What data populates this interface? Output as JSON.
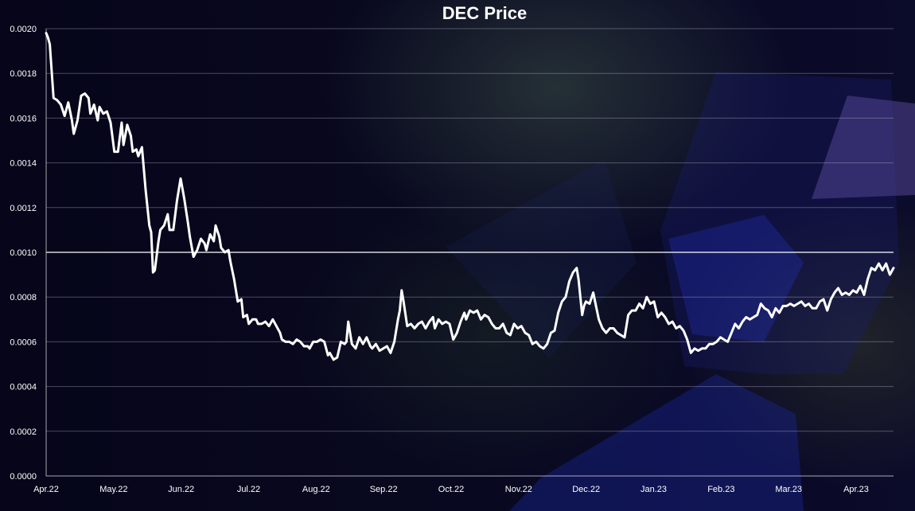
{
  "chart_data": {
    "type": "line",
    "title": "DEC Price",
    "xlabel": "",
    "ylabel": "",
    "ylim": [
      0,
      0.002
    ],
    "y_ticks": [
      "0.0000",
      "0.0002",
      "0.0004",
      "0.0006",
      "0.0008",
      "0.0010",
      "0.0012",
      "0.0014",
      "0.0016",
      "0.0018",
      "0.0020"
    ],
    "x_ticks": [
      "Apr.22",
      "May.22",
      "Jun.22",
      "Jul.22",
      "Aug.22",
      "Sep.22",
      "Oct.22",
      "Nov.22",
      "Dec.22",
      "Jan.23",
      "Feb.23",
      "Mar.23",
      "Apr.23"
    ],
    "grid": true,
    "reference_line": 0.001,
    "series": [
      {
        "values": [
          [
            0,
            0.00198
          ],
          [
            1,
            0.00196
          ],
          [
            2,
            0.00193
          ],
          [
            4,
            0.00169
          ],
          [
            6,
            0.00168
          ],
          [
            8,
            0.00166
          ],
          [
            10,
            0.00161
          ],
          [
            12,
            0.00167
          ],
          [
            14,
            0.00159
          ],
          [
            15,
            0.00153
          ],
          [
            17,
            0.00159
          ],
          [
            19,
            0.0017
          ],
          [
            21,
            0.00171
          ],
          [
            23,
            0.00169
          ],
          [
            24,
            0.00162
          ],
          [
            26,
            0.00166
          ],
          [
            28,
            0.00159
          ],
          [
            29,
            0.00165
          ],
          [
            31,
            0.00162
          ],
          [
            33,
            0.00163
          ],
          [
            35,
            0.00158
          ],
          [
            37,
            0.00145
          ],
          [
            39,
            0.00145
          ],
          [
            41,
            0.00158
          ],
          [
            42,
            0.00148
          ],
          [
            44,
            0.00157
          ],
          [
            46,
            0.00152
          ],
          [
            47,
            0.00145
          ],
          [
            49,
            0.00146
          ],
          [
            50,
            0.00143
          ],
          [
            52,
            0.00147
          ],
          [
            54,
            0.00128
          ],
          [
            56,
            0.00112
          ],
          [
            57,
            0.00109
          ],
          [
            58,
            0.00091
          ],
          [
            59,
            0.00092
          ],
          [
            61,
            0.00105
          ],
          [
            62,
            0.0011
          ],
          [
            64,
            0.00112
          ],
          [
            66,
            0.00117
          ],
          [
            67,
            0.0011
          ],
          [
            69,
            0.0011
          ],
          [
            71,
            0.00123
          ],
          [
            73,
            0.00133
          ],
          [
            75,
            0.00124
          ],
          [
            77,
            0.00113
          ],
          [
            78,
            0.00107
          ],
          [
            80,
            0.00098
          ],
          [
            82,
            0.00101
          ],
          [
            84,
            0.00106
          ],
          [
            86,
            0.00104
          ],
          [
            87,
            0.00101
          ],
          [
            89,
            0.00108
          ],
          [
            91,
            0.00105
          ],
          [
            92,
            0.00112
          ],
          [
            94,
            0.00107
          ],
          [
            95,
            0.00102
          ],
          [
            97,
            0.001
          ],
          [
            99,
            0.00101
          ],
          [
            100,
            0.00096
          ],
          [
            102,
            0.00088
          ],
          [
            103,
            0.00083
          ],
          [
            104,
            0.00078
          ],
          [
            106,
            0.00079
          ],
          [
            107,
            0.00071
          ],
          [
            109,
            0.00072
          ],
          [
            110,
            0.00068
          ],
          [
            112,
            0.0007
          ],
          [
            114,
            0.0007
          ],
          [
            115,
            0.00068
          ],
          [
            117,
            0.00068
          ],
          [
            119,
            0.00069
          ],
          [
            121,
            0.00067
          ],
          [
            123,
            0.0007
          ],
          [
            125,
            0.00067
          ],
          [
            127,
            0.00064
          ],
          [
            128,
            0.00061
          ],
          [
            130,
            0.0006
          ],
          [
            132,
            0.0006
          ],
          [
            134,
            0.00059
          ],
          [
            136,
            0.00061
          ],
          [
            138,
            0.0006
          ],
          [
            140,
            0.00058
          ],
          [
            142,
            0.00058
          ],
          [
            143,
            0.00057
          ],
          [
            145,
            0.0006
          ],
          [
            147,
            0.0006
          ],
          [
            149,
            0.00061
          ],
          [
            151,
            0.0006
          ],
          [
            153,
            0.00054
          ],
          [
            154,
            0.00055
          ],
          [
            156,
            0.00052
          ],
          [
            158,
            0.00053
          ],
          [
            160,
            0.0006
          ],
          [
            162,
            0.00059
          ],
          [
            163,
            0.0006
          ],
          [
            164,
            0.00069
          ],
          [
            166,
            0.00059
          ],
          [
            168,
            0.00057
          ],
          [
            170,
            0.00062
          ],
          [
            172,
            0.00059
          ],
          [
            174,
            0.00062
          ],
          [
            176,
            0.00058
          ],
          [
            177,
            0.00057
          ],
          [
            179,
            0.00059
          ],
          [
            181,
            0.00056
          ],
          [
            183,
            0.00057
          ],
          [
            185,
            0.00058
          ],
          [
            187,
            0.00055
          ],
          [
            189,
            0.0006
          ],
          [
            191,
            0.0007
          ],
          [
            192,
            0.00074
          ],
          [
            193,
            0.00083
          ],
          [
            194,
            0.00078
          ],
          [
            196,
            0.00067
          ],
          [
            198,
            0.00068
          ],
          [
            200,
            0.00066
          ],
          [
            202,
            0.00068
          ],
          [
            204,
            0.00069
          ],
          [
            206,
            0.00066
          ],
          [
            208,
            0.00069
          ],
          [
            210,
            0.00071
          ],
          [
            211,
            0.00066
          ],
          [
            213,
            0.0007
          ],
          [
            215,
            0.00068
          ],
          [
            217,
            0.00069
          ],
          [
            219,
            0.00068
          ],
          [
            221,
            0.00061
          ],
          [
            223,
            0.00064
          ],
          [
            225,
            0.00069
          ],
          [
            227,
            0.00073
          ],
          [
            228,
            0.0007
          ],
          [
            230,
            0.00074
          ],
          [
            232,
            0.00073
          ],
          [
            234,
            0.00074
          ],
          [
            236,
            0.0007
          ],
          [
            238,
            0.00072
          ],
          [
            240,
            0.00071
          ],
          [
            242,
            0.00068
          ],
          [
            244,
            0.00066
          ],
          [
            246,
            0.00066
          ],
          [
            248,
            0.00068
          ],
          [
            250,
            0.00064
          ],
          [
            252,
            0.00063
          ],
          [
            254,
            0.00068
          ],
          [
            256,
            0.00066
          ],
          [
            258,
            0.00067
          ],
          [
            260,
            0.00064
          ],
          [
            262,
            0.00063
          ],
          [
            264,
            0.00059
          ],
          [
            266,
            0.0006
          ],
          [
            268,
            0.00058
          ],
          [
            270,
            0.00057
          ],
          [
            272,
            0.00059
          ],
          [
            274,
            0.00064
          ],
          [
            276,
            0.00065
          ],
          [
            278,
            0.00073
          ],
          [
            280,
            0.00078
          ],
          [
            282,
            0.0008
          ],
          [
            284,
            0.00087
          ],
          [
            286,
            0.00091
          ],
          [
            288,
            0.00093
          ],
          [
            289,
            0.00088
          ],
          [
            290,
            0.0008
          ],
          [
            291,
            0.00072
          ],
          [
            292,
            0.00076
          ],
          [
            293,
            0.00078
          ],
          [
            295,
            0.00077
          ],
          [
            297,
            0.00082
          ],
          [
            298,
            0.00078
          ],
          [
            300,
            0.0007
          ],
          [
            302,
            0.00066
          ],
          [
            304,
            0.00064
          ],
          [
            306,
            0.00066
          ],
          [
            308,
            0.00066
          ],
          [
            310,
            0.00064
          ],
          [
            312,
            0.00063
          ],
          [
            314,
            0.00062
          ],
          [
            316,
            0.00072
          ],
          [
            318,
            0.00074
          ],
          [
            320,
            0.00074
          ],
          [
            322,
            0.00077
          ],
          [
            324,
            0.00075
          ],
          [
            326,
            0.0008
          ],
          [
            328,
            0.00077
          ],
          [
            330,
            0.00078
          ],
          [
            332,
            0.00071
          ],
          [
            334,
            0.00073
          ],
          [
            336,
            0.00071
          ],
          [
            338,
            0.00068
          ],
          [
            340,
            0.00069
          ],
          [
            342,
            0.00066
          ],
          [
            344,
            0.00067
          ],
          [
            346,
            0.00065
          ],
          [
            348,
            0.00061
          ],
          [
            350,
            0.00055
          ],
          [
            352,
            0.00057
          ],
          [
            354,
            0.00056
          ],
          [
            356,
            0.00057
          ],
          [
            358,
            0.00057
          ],
          [
            360,
            0.00059
          ],
          [
            362,
            0.00059
          ],
          [
            364,
            0.0006
          ],
          [
            366,
            0.00062
          ],
          [
            368,
            0.00061
          ],
          [
            370,
            0.0006
          ],
          [
            372,
            0.00064
          ],
          [
            374,
            0.00068
          ],
          [
            376,
            0.00066
          ],
          [
            378,
            0.00069
          ],
          [
            380,
            0.00071
          ],
          [
            382,
            0.0007
          ],
          [
            384,
            0.00071
          ],
          [
            386,
            0.00072
          ],
          [
            388,
            0.00077
          ],
          [
            390,
            0.00075
          ],
          [
            392,
            0.00074
          ],
          [
            394,
            0.00071
          ],
          [
            396,
            0.00075
          ],
          [
            398,
            0.00073
          ],
          [
            400,
            0.00076
          ],
          [
            402,
            0.00076
          ],
          [
            404,
            0.00077
          ],
          [
            406,
            0.00076
          ],
          [
            408,
            0.00077
          ],
          [
            410,
            0.00078
          ],
          [
            412,
            0.00076
          ],
          [
            414,
            0.00077
          ],
          [
            416,
            0.00075
          ],
          [
            418,
            0.00075
          ],
          [
            420,
            0.00078
          ],
          [
            422,
            0.00079
          ],
          [
            424,
            0.00074
          ],
          [
            426,
            0.00079
          ],
          [
            428,
            0.00082
          ],
          [
            430,
            0.00084
          ],
          [
            432,
            0.00081
          ],
          [
            434,
            0.00082
          ],
          [
            436,
            0.00081
          ],
          [
            438,
            0.00083
          ],
          [
            440,
            0.00082
          ],
          [
            442,
            0.00085
          ],
          [
            444,
            0.00081
          ],
          [
            446,
            0.00088
          ],
          [
            448,
            0.00093
          ],
          [
            450,
            0.00092
          ],
          [
            452,
            0.00095
          ],
          [
            454,
            0.00092
          ],
          [
            456,
            0.00095
          ],
          [
            458,
            0.0009
          ],
          [
            460,
            0.00093
          ]
        ]
      }
    ]
  }
}
